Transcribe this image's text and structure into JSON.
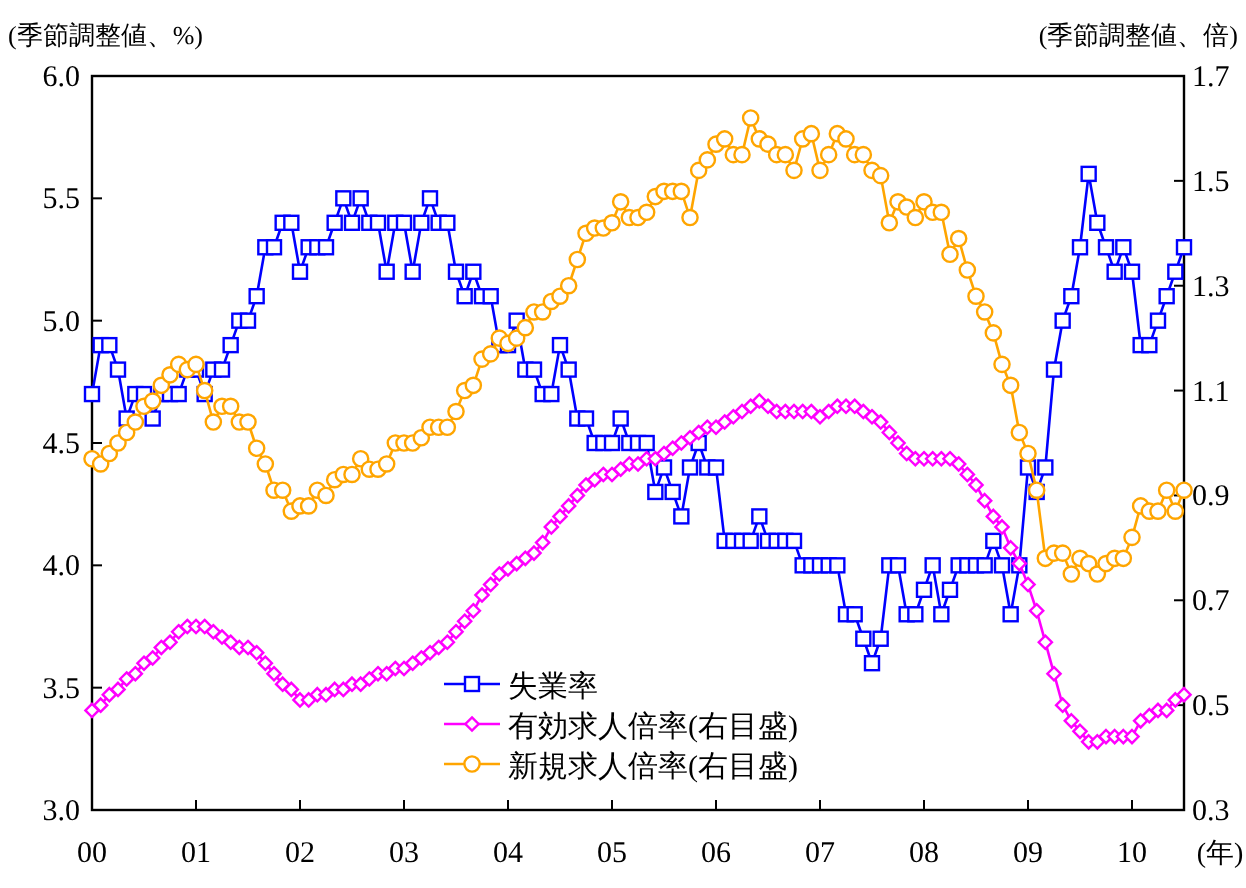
{
  "chart_data": {
    "type": "line",
    "xlabel": "(年)",
    "ylabel": "(季節調整値、%)",
    "y2label": "(季節調整値、倍)",
    "x": [
      "2000-01",
      "2000-02",
      "2000-03",
      "2000-04",
      "2000-05",
      "2000-06",
      "2000-07",
      "2000-08",
      "2000-09",
      "2000-10",
      "2000-11",
      "2000-12",
      "2001-01",
      "2001-02",
      "2001-03",
      "2001-04",
      "2001-05",
      "2001-06",
      "2001-07",
      "2001-08",
      "2001-09",
      "2001-10",
      "2001-11",
      "2001-12",
      "2002-01",
      "2002-02",
      "2002-03",
      "2002-04",
      "2002-05",
      "2002-06",
      "2002-07",
      "2002-08",
      "2002-09",
      "2002-10",
      "2002-11",
      "2002-12",
      "2003-01",
      "2003-02",
      "2003-03",
      "2003-04",
      "2003-05",
      "2003-06",
      "2003-07",
      "2003-08",
      "2003-09",
      "2003-10",
      "2003-11",
      "2003-12",
      "2004-01",
      "2004-02",
      "2004-03",
      "2004-04",
      "2004-05",
      "2004-06",
      "2004-07",
      "2004-08",
      "2004-09",
      "2004-10",
      "2004-11",
      "2004-12",
      "2005-01",
      "2005-02",
      "2005-03",
      "2005-04",
      "2005-05",
      "2005-06",
      "2005-07",
      "2005-08",
      "2005-09",
      "2005-10",
      "2005-11",
      "2005-12",
      "2006-01",
      "2006-02",
      "2006-03",
      "2006-04",
      "2006-05",
      "2006-06",
      "2006-07",
      "2006-08",
      "2006-09",
      "2006-10",
      "2006-11",
      "2006-12",
      "2007-01",
      "2007-02",
      "2007-03",
      "2007-04",
      "2007-05",
      "2007-06",
      "2007-07",
      "2007-08",
      "2007-09",
      "2007-10",
      "2007-11",
      "2007-12",
      "2008-01",
      "2008-02",
      "2008-03",
      "2008-04",
      "2008-05",
      "2008-06",
      "2008-07",
      "2008-08",
      "2008-09",
      "2008-10",
      "2008-11",
      "2008-12",
      "2009-01",
      "2009-02",
      "2009-03",
      "2009-04",
      "2009-05",
      "2009-06",
      "2009-07",
      "2009-08",
      "2009-09",
      "2009-10",
      "2009-11",
      "2009-12",
      "2010-01",
      "2010-02",
      "2010-03",
      "2010-04",
      "2010-05",
      "2010-06",
      "2010-07"
    ],
    "series": [
      {
        "name": "失業率",
        "color": "#0000ff",
        "marker": "square",
        "values": [
          4.7,
          4.9,
          4.9,
          4.8,
          4.6,
          4.7,
          4.7,
          4.6,
          4.7,
          4.7,
          4.7,
          4.8,
          4.8,
          4.7,
          4.8,
          4.8,
          4.9,
          5.0,
          5.0,
          5.1,
          5.3,
          5.3,
          5.4,
          5.4,
          5.2,
          5.3,
          5.3,
          5.3,
          5.4,
          5.5,
          5.4,
          5.5,
          5.4,
          5.4,
          5.2,
          5.4,
          5.4,
          5.2,
          5.4,
          5.5,
          5.4,
          5.4,
          5.2,
          5.1,
          5.2,
          5.1,
          5.1,
          4.9,
          4.9,
          5.0,
          4.8,
          4.8,
          4.7,
          4.7,
          4.9,
          4.8,
          4.6,
          4.6,
          4.5,
          4.5,
          4.5,
          4.6,
          4.5,
          4.5,
          4.5,
          4.3,
          4.4,
          4.3,
          4.2,
          4.4,
          4.5,
          4.4,
          4.4,
          4.1,
          4.1,
          4.1,
          4.1,
          4.2,
          4.1,
          4.1,
          4.1,
          4.1,
          4.0,
          4.0,
          4.0,
          4.0,
          4.0,
          3.8,
          3.8,
          3.7,
          3.6,
          3.7,
          4.0,
          4.0,
          3.8,
          3.8,
          3.9,
          4.0,
          3.8,
          3.9,
          4.0,
          4.0,
          4.0,
          4.0,
          4.1,
          4.0,
          3.8,
          4.0,
          4.4,
          4.3,
          4.4,
          4.8,
          5.0,
          5.1,
          5.3,
          5.6,
          5.4,
          5.3,
          5.2,
          5.3,
          5.2,
          4.9,
          4.9,
          5.0,
          5.1,
          5.2,
          5.3
        ]
      },
      {
        "name": "有効求人倍率(右目盛)",
        "color": "#ff00ff",
        "marker": "diamond",
        "axis": "y2",
        "values": [
          0.49,
          0.5,
          0.52,
          0.53,
          0.55,
          0.56,
          0.58,
          0.59,
          0.61,
          0.62,
          0.64,
          0.65,
          0.65,
          0.65,
          0.64,
          0.63,
          0.62,
          0.61,
          0.61,
          0.6,
          0.58,
          0.56,
          0.54,
          0.53,
          0.51,
          0.51,
          0.52,
          0.52,
          0.53,
          0.53,
          0.54,
          0.54,
          0.55,
          0.56,
          0.56,
          0.57,
          0.57,
          0.58,
          0.59,
          0.6,
          0.61,
          0.62,
          0.64,
          0.66,
          0.68,
          0.71,
          0.73,
          0.75,
          0.76,
          0.77,
          0.78,
          0.79,
          0.81,
          0.84,
          0.86,
          0.88,
          0.9,
          0.92,
          0.93,
          0.94,
          0.94,
          0.95,
          0.96,
          0.96,
          0.97,
          0.97,
          0.98,
          0.99,
          1.0,
          1.01,
          1.02,
          1.03,
          1.03,
          1.04,
          1.05,
          1.06,
          1.07,
          1.08,
          1.07,
          1.06,
          1.06,
          1.06,
          1.06,
          1.06,
          1.05,
          1.06,
          1.07,
          1.07,
          1.07,
          1.06,
          1.05,
          1.04,
          1.02,
          1.0,
          0.98,
          0.97,
          0.97,
          0.97,
          0.97,
          0.97,
          0.96,
          0.94,
          0.92,
          0.89,
          0.86,
          0.84,
          0.8,
          0.77,
          0.73,
          0.68,
          0.62,
          0.56,
          0.5,
          0.47,
          0.45,
          0.43,
          0.43,
          0.44,
          0.44,
          0.44,
          0.44,
          0.47,
          0.48,
          0.49,
          0.49,
          0.51,
          0.52
        ]
      },
      {
        "name": "新規求人倍率(右目盛)",
        "color": "#ffa500",
        "marker": "circle",
        "axis": "y2",
        "values": [
          0.97,
          0.96,
          0.98,
          1.0,
          1.02,
          1.04,
          1.07,
          1.08,
          1.11,
          1.13,
          1.15,
          1.14,
          1.15,
          1.1,
          1.04,
          1.07,
          1.07,
          1.04,
          1.04,
          0.99,
          0.96,
          0.91,
          0.91,
          0.87,
          0.88,
          0.88,
          0.91,
          0.9,
          0.93,
          0.94,
          0.94,
          0.97,
          0.95,
          0.95,
          0.96,
          1.0,
          1.0,
          1.0,
          1.01,
          1.03,
          1.03,
          1.03,
          1.06,
          1.1,
          1.11,
          1.16,
          1.17,
          1.2,
          1.19,
          1.2,
          1.22,
          1.25,
          1.25,
          1.27,
          1.28,
          1.3,
          1.35,
          1.4,
          1.41,
          1.41,
          1.42,
          1.46,
          1.43,
          1.43,
          1.44,
          1.47,
          1.48,
          1.48,
          1.48,
          1.43,
          1.52,
          1.54,
          1.57,
          1.58,
          1.55,
          1.55,
          1.62,
          1.58,
          1.57,
          1.55,
          1.55,
          1.52,
          1.58,
          1.59,
          1.52,
          1.55,
          1.59,
          1.58,
          1.55,
          1.55,
          1.52,
          1.51,
          1.42,
          1.46,
          1.45,
          1.43,
          1.46,
          1.44,
          1.44,
          1.36,
          1.39,
          1.33,
          1.28,
          1.25,
          1.21,
          1.15,
          1.11,
          1.02,
          0.98,
          0.91,
          0.78,
          0.79,
          0.79,
          0.75,
          0.78,
          0.77,
          0.75,
          0.77,
          0.78,
          0.78,
          0.82,
          0.88,
          0.87,
          0.87,
          0.91,
          0.87,
          0.91
        ]
      }
    ],
    "xlim": [
      "2000-01",
      "2010-07"
    ],
    "xticks": [
      {
        "value": "2000-01",
        "label": "00"
      },
      {
        "value": "2001-01",
        "label": "01"
      },
      {
        "value": "2002-01",
        "label": "02"
      },
      {
        "value": "2003-01",
        "label": "03"
      },
      {
        "value": "2004-01",
        "label": "04"
      },
      {
        "value": "2005-01",
        "label": "05"
      },
      {
        "value": "2006-01",
        "label": "06"
      },
      {
        "value": "2007-01",
        "label": "07"
      },
      {
        "value": "2008-01",
        "label": "08"
      },
      {
        "value": "2009-01",
        "label": "09"
      },
      {
        "value": "2010-01",
        "label": "10"
      }
    ],
    "ylim": [
      3.0,
      6.0
    ],
    "yticks": [
      {
        "value": 3.0,
        "label": "3.0"
      },
      {
        "value": 3.5,
        "label": "3.5"
      },
      {
        "value": 4.0,
        "label": "4.0"
      },
      {
        "value": 4.5,
        "label": "4.5"
      },
      {
        "value": 5.0,
        "label": "5.0"
      },
      {
        "value": 5.5,
        "label": "5.5"
      },
      {
        "value": 6.0,
        "label": "6.0"
      }
    ],
    "y2lim": [
      0.3,
      1.7
    ],
    "y2ticks": [
      0.3,
      0.5,
      0.7,
      0.9,
      1.1,
      1.3,
      1.5,
      1.7
    ],
    "grid": false,
    "legend": "bottom"
  }
}
